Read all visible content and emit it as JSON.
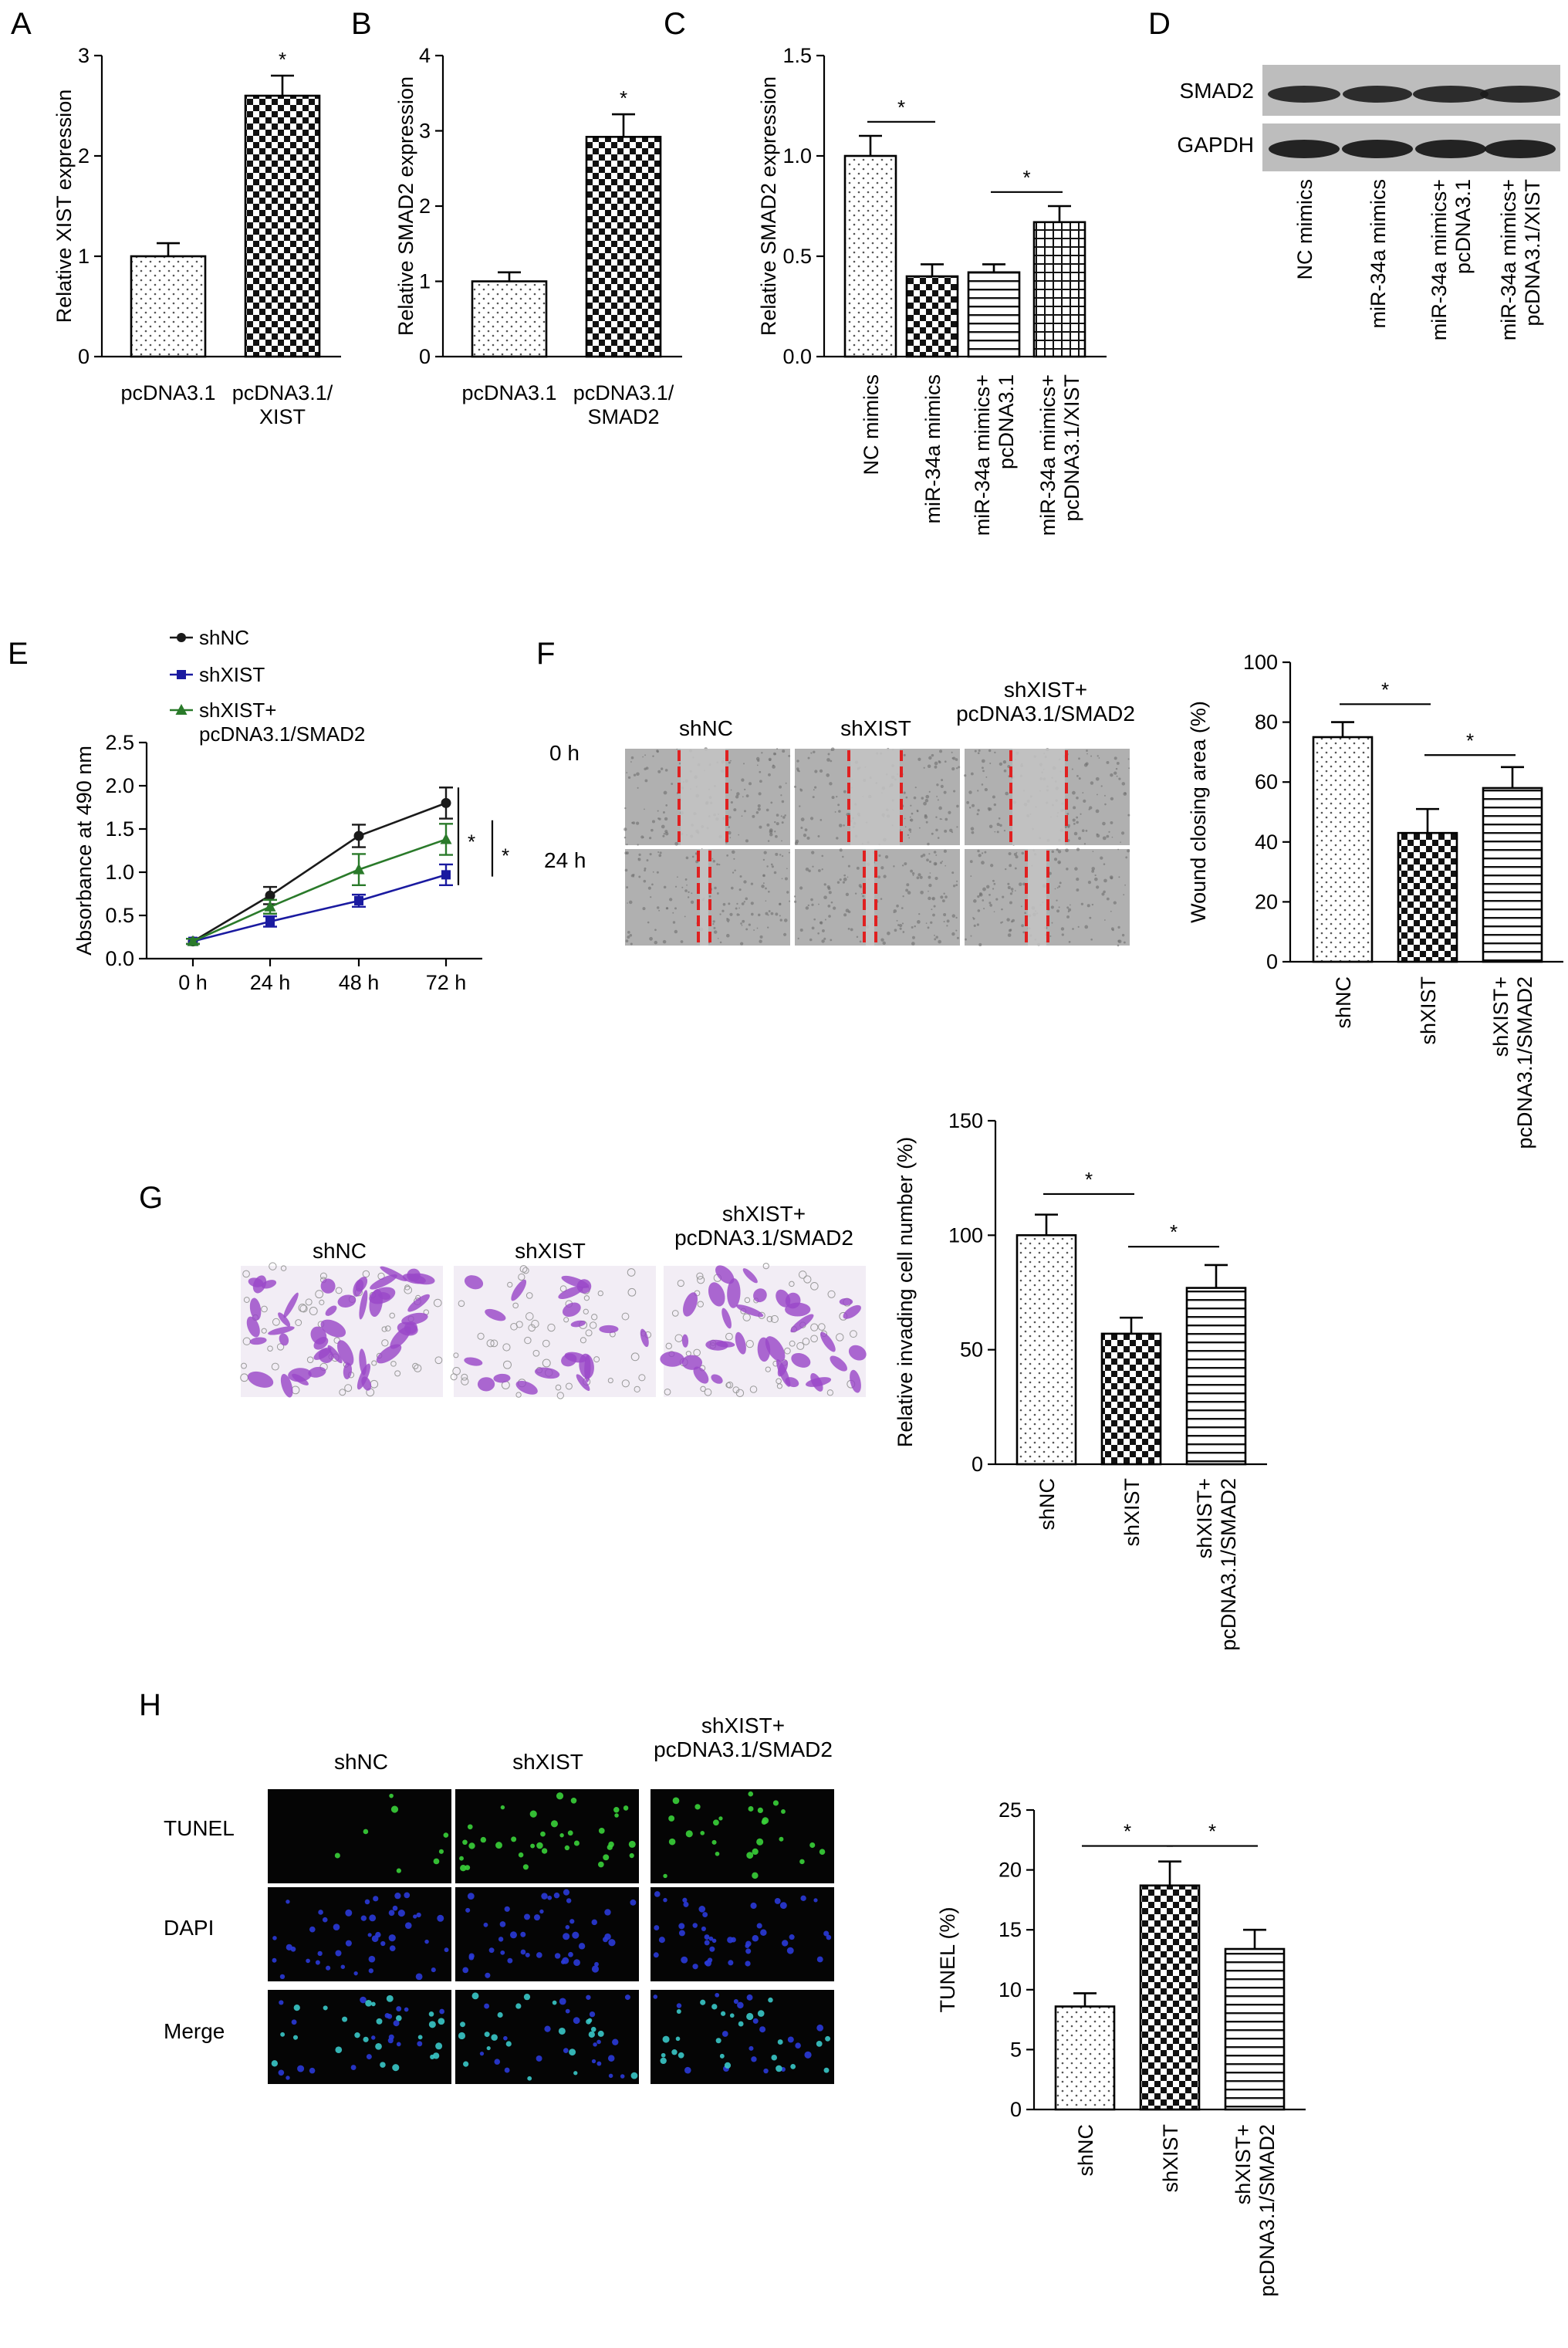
{
  "colors": {
    "shNC": "#1a1a1a",
    "shXIST": "#1a1aa0",
    "shXIST_SMAD2": "#2a7a2a",
    "wound_line": "#e02020",
    "transwell_bg": "#f2edf5",
    "transwell_cell": "#9a48c8",
    "fluor_bg": "#050505",
    "tunel": "#3ad23a",
    "dapi": "#2a3ad8",
    "merge": "#3ac8c8"
  },
  "panel_letters": [
    "A",
    "B",
    "C",
    "D",
    "E",
    "F",
    "G",
    "H"
  ],
  "blot": {
    "rows": [
      "SMAD2",
      "GAPDH"
    ],
    "lanes": [
      "NC mimics",
      "miR-34a mimics",
      "miR-34a mimics+\npcDNA3.1",
      "miR-34a mimics+\npcDNA3.1/XIST"
    ]
  },
  "wound": {
    "columns": [
      "shNC",
      "shXIST",
      "shXIST+\npcDNA3.1/SMAD2"
    ],
    "rows": [
      "0 h",
      "24 h"
    ]
  },
  "transwell": {
    "columns": [
      "shNC",
      "shXIST",
      "shXIST+\npcDNA3.1/SMAD2"
    ]
  },
  "fluorescence": {
    "columns": [
      "shNC",
      "shXIST",
      "shXIST+\npcDNA3.1/SMAD2"
    ],
    "rows": [
      "TUNEL",
      "DAPI",
      "Merge"
    ]
  },
  "chart_data": [
    {
      "id": "A",
      "type": "bar",
      "categories": [
        "pcDNA3.1",
        "pcDNA3.1/\nXIST"
      ],
      "values": [
        1.0,
        2.6
      ],
      "errors": [
        0.13,
        0.2
      ],
      "patterns": [
        "dots",
        "checker"
      ],
      "ylabel": "Relative XIST expression",
      "ylim": [
        0,
        3
      ],
      "yticks": [
        0,
        1,
        2,
        3
      ],
      "significance": [
        {
          "label": "*",
          "over": 1
        }
      ]
    },
    {
      "id": "B",
      "type": "bar",
      "categories": [
        "pcDNA3.1",
        "pcDNA3.1/\nSMAD2"
      ],
      "values": [
        1.0,
        2.92
      ],
      "errors": [
        0.12,
        0.3
      ],
      "patterns": [
        "dots",
        "checker"
      ],
      "ylabel": "Relative SMAD2 expression",
      "ylim": [
        0,
        4
      ],
      "yticks": [
        0,
        1,
        2,
        3,
        4
      ],
      "significance": [
        {
          "label": "*",
          "over": 1
        }
      ]
    },
    {
      "id": "C",
      "type": "bar",
      "categories": [
        "NC mimics",
        "miR-34a mimics",
        "miR-34a mimics+\npcDNA3.1",
        "miR-34a mimics+\npcDNA3.1/XIST"
      ],
      "values": [
        1.0,
        0.4,
        0.42,
        0.67
      ],
      "errors": [
        0.1,
        0.06,
        0.04,
        0.08
      ],
      "patterns": [
        "dots",
        "checker",
        "hlines",
        "grid"
      ],
      "ylabel": "Relative SMAD2 expression",
      "ylim": [
        0,
        1.5
      ],
      "yticks": [
        "0.0",
        "0.5",
        "1.0",
        "1.5"
      ],
      "significance": [
        {
          "label": "*",
          "from": 0,
          "to": 1,
          "at": 1.17
        },
        {
          "label": "*",
          "from": 2,
          "to": 3,
          "at": 0.82
        }
      ]
    },
    {
      "id": "E",
      "type": "line",
      "x": [
        "0 h",
        "24 h",
        "48 h",
        "72 h"
      ],
      "series": [
        {
          "name": "shNC",
          "values": [
            0.2,
            0.73,
            1.42,
            1.8
          ],
          "errors": [
            0.03,
            0.1,
            0.13,
            0.18
          ]
        },
        {
          "name": "shXIST",
          "values": [
            0.2,
            0.43,
            0.67,
            0.97
          ],
          "errors": [
            0.03,
            0.06,
            0.07,
            0.12
          ]
        },
        {
          "name": "shXIST+\npcDNA3.1/SMAD2",
          "values": [
            0.2,
            0.6,
            1.03,
            1.38
          ],
          "errors": [
            0.03,
            0.08,
            0.18,
            0.18
          ]
        }
      ],
      "ylabel": "Absorbance at 490 nm",
      "ylim": [
        0,
        2.5
      ],
      "yticks": [
        "0.0",
        "0.5",
        "1.0",
        "1.5",
        "2.0",
        "2.5"
      ],
      "legend": "top-left",
      "significance": [
        {
          "label": "*"
        },
        {
          "label": "*"
        }
      ]
    },
    {
      "id": "F",
      "type": "bar",
      "categories": [
        "shNC",
        "shXIST",
        "shXIST+\npcDNA3.1/SMAD2"
      ],
      "values": [
        75,
        43,
        58
      ],
      "errors": [
        5,
        8,
        7
      ],
      "patterns": [
        "dots",
        "checker",
        "hlines"
      ],
      "ylabel": "Wound closing area (%)",
      "ylim": [
        0,
        100
      ],
      "yticks": [
        0,
        20,
        40,
        60,
        80,
        100
      ],
      "significance": [
        {
          "label": "*",
          "from": 0,
          "to": 1,
          "at": 86
        },
        {
          "label": "*",
          "from": 1,
          "to": 2,
          "at": 69
        }
      ]
    },
    {
      "id": "G",
      "type": "bar",
      "categories": [
        "shNC",
        "shXIST",
        "shXIST+\npcDNA3.1/SMAD2"
      ],
      "values": [
        100,
        57,
        77
      ],
      "errors": [
        9,
        7,
        10
      ],
      "patterns": [
        "dots",
        "checker",
        "hlines"
      ],
      "ylabel": "Relative invading cell number (%)",
      "ylim": [
        0,
        150
      ],
      "yticks": [
        0,
        50,
        100,
        150
      ],
      "significance": [
        {
          "label": "*",
          "from": 0,
          "to": 1,
          "at": 118
        },
        {
          "label": "*",
          "from": 1,
          "to": 2,
          "at": 95
        }
      ]
    },
    {
      "id": "H",
      "type": "bar",
      "categories": [
        "shNC",
        "shXIST",
        "shXIST+\npcDNA3.1/SMAD2"
      ],
      "values": [
        8.6,
        18.7,
        13.4
      ],
      "errors": [
        1.1,
        2.0,
        1.6
      ],
      "patterns": [
        "dots",
        "checker",
        "hlines"
      ],
      "ylabel": "TUNEL (%)",
      "ylim": [
        0,
        25
      ],
      "yticks": [
        0,
        5,
        10,
        15,
        20,
        25
      ],
      "significance": [
        {
          "label": "*",
          "from": 0,
          "to": 1,
          "at": 22
        },
        {
          "label": "*",
          "from": 1,
          "to": 2,
          "at": 22
        }
      ]
    }
  ]
}
